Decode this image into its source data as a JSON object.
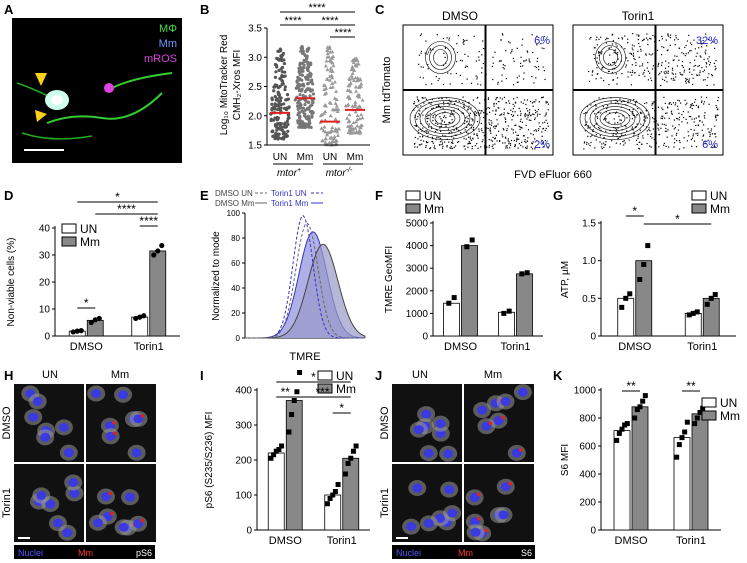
{
  "panels": {
    "A": {
      "letter": "A",
      "labels": {
        "mphi": "MΦ",
        "mm": "Mm",
        "mros": "mROS"
      },
      "colors": {
        "mphi": "#44dd44",
        "mm": "#6699ff",
        "mros": "#dd44dd"
      }
    },
    "B": {
      "letter": "B",
      "ylabel_line1": "Log₁₀ MitoTracker Red",
      "ylabel_line2": "CMH₂-Xros MFI",
      "yticks": [
        "1.5",
        "2.0",
        "2.5",
        "3.0",
        "3.5"
      ],
      "xticks": [
        "UN",
        "Mm",
        "UN",
        "Mm"
      ],
      "group1": "mtor",
      "group1_sup": "+",
      "group2": "mtor",
      "group2_sup": "-/-",
      "stars": [
        "****",
        "****",
        "****",
        "****"
      ]
    },
    "C": {
      "letter": "C",
      "title_left": "DMSO",
      "title_right": "Torin1",
      "ylabel": "Mm tdTomato",
      "xlabel": "FVD eFluor 660",
      "quad_left": [
        "6%",
        "2%"
      ],
      "quad_right": [
        "32%",
        "6%"
      ]
    },
    "D": {
      "letter": "D",
      "ylabel": "Non-viable cells (%)",
      "yticks": [
        "0",
        "10",
        "20",
        "30",
        "40"
      ],
      "xticks": [
        "DMSO",
        "Torin1"
      ],
      "legend": [
        "UN",
        "Mm"
      ],
      "stars": [
        "*",
        "****",
        "****",
        "*"
      ]
    },
    "E": {
      "letter": "E",
      "ylabel": "Normalized to mode",
      "xlabel": "TMRE",
      "yticks": [
        "0",
        "20",
        "40",
        "60",
        "80",
        "100"
      ],
      "legend": [
        "DMSO UN",
        "Torin1 UN",
        "DMSO Mm",
        "Torin1 Mm"
      ]
    },
    "F": {
      "letter": "F",
      "ylabel": "TMRE GeoMFI",
      "yticks": [
        "0",
        "1000",
        "2000",
        "3000",
        "4000",
        "5000"
      ],
      "xticks": [
        "DMSO",
        "Torin1"
      ],
      "legend": [
        "UN",
        "Mm"
      ]
    },
    "G": {
      "letter": "G",
      "ylabel": "ATP, µM",
      "yticks": [
        "0",
        "0.5",
        "1.0",
        "1.5"
      ],
      "xticks": [
        "DMSO",
        "Torin1"
      ],
      "legend": [
        "UN",
        "Mm"
      ],
      "stars": [
        "*",
        "*"
      ]
    },
    "H": {
      "letter": "H",
      "cols": [
        "UN",
        "Mm"
      ],
      "rows": [
        "DMSO",
        "Torin1"
      ],
      "legend": [
        "Nuclei",
        "Mm",
        "pS6"
      ]
    },
    "I": {
      "letter": "I",
      "ylabel": "pS6 (S235/S236) MFI",
      "yticks": [
        "0",
        "100",
        "200",
        "300",
        "400"
      ],
      "xticks": [
        "DMSO",
        "Torin1"
      ],
      "legend": [
        "UN",
        "Mm"
      ],
      "stars": [
        "*",
        "**",
        "***",
        "*"
      ]
    },
    "J": {
      "letter": "J",
      "cols": [
        "UN",
        "Mm"
      ],
      "rows": [
        "DMSO",
        "Torin1"
      ],
      "legend": [
        "Nuclei",
        "Mm",
        "S6"
      ]
    },
    "K": {
      "letter": "K",
      "ylabel": "S6 MFI",
      "yticks": [
        "0",
        "200",
        "400",
        "600",
        "800",
        "1000"
      ],
      "xticks": [
        "DMSO",
        "Torin1"
      ],
      "legend": [
        "UN",
        "Mm"
      ],
      "stars": [
        "**",
        "**"
      ]
    }
  },
  "chart_data": [
    {
      "panel": "D",
      "type": "bar",
      "categories": [
        "DMSO",
        "Torin1"
      ],
      "ylim": [
        0,
        40
      ],
      "series": [
        {
          "name": "UN",
          "values": [
            1.8,
            7.0
          ],
          "points": [
            [
              1.5,
              1.8,
              2.0
            ],
            [
              6.5,
              7.0,
              7.5
            ]
          ]
        },
        {
          "name": "Mm",
          "values": [
            5.8,
            31.5
          ],
          "points": [
            [
              5.0,
              6.0,
              6.5
            ],
            [
              30,
              31.5,
              33.5
            ]
          ]
        }
      ]
    },
    {
      "panel": "F",
      "type": "bar",
      "categories": [
        "DMSO",
        "Torin1"
      ],
      "ylim": [
        0,
        5000
      ],
      "series": [
        {
          "name": "UN",
          "values": [
            1450,
            1050
          ],
          "points": [
            [
              1450,
              1700
            ],
            [
              1000,
              1100
            ]
          ]
        },
        {
          "name": "Mm",
          "values": [
            4000,
            2750
          ],
          "points": [
            [
              3950,
              4250
            ],
            [
              2750,
              2800
            ]
          ]
        }
      ]
    },
    {
      "panel": "G",
      "type": "bar",
      "categories": [
        "DMSO",
        "Torin1"
      ],
      "ylim": [
        0,
        1.5
      ],
      "series": [
        {
          "name": "UN",
          "values": [
            0.5,
            0.3
          ],
          "points": [
            [
              0.38,
              0.5,
              0.56
            ],
            [
              0.28,
              0.3,
              0.32
            ]
          ]
        },
        {
          "name": "Mm",
          "values": [
            1.0,
            0.5
          ],
          "points": [
            [
              0.75,
              0.95,
              1.2
            ],
            [
              0.42,
              0.5,
              0.55
            ]
          ]
        }
      ]
    },
    {
      "panel": "I",
      "type": "bar",
      "categories": [
        "DMSO",
        "Torin1"
      ],
      "ylim": [
        0,
        400
      ],
      "series": [
        {
          "name": "UN",
          "values": [
            220,
            100
          ],
          "points": [
            [
              205,
              215,
              225,
              230,
              240
            ],
            [
              75,
              90,
              100,
              110,
              130
            ]
          ]
        },
        {
          "name": "Mm",
          "values": [
            370,
            205
          ],
          "points": [
            [
              280,
              330,
              370,
              395,
              450
            ],
            [
              160,
              190,
              205,
              225,
              240
            ]
          ]
        }
      ]
    },
    {
      "panel": "K",
      "type": "bar",
      "categories": [
        "DMSO",
        "Torin1"
      ],
      "ylim": [
        0,
        1000
      ],
      "series": [
        {
          "name": "UN",
          "values": [
            710,
            660
          ],
          "points": [
            [
              640,
              690,
              720,
              750,
              760
            ],
            [
              520,
              610,
              660,
              700,
              770
            ]
          ]
        },
        {
          "name": "Mm",
          "values": [
            880,
            830
          ],
          "points": [
            [
              800,
              860,
              880,
              920,
              960
            ],
            [
              760,
              800,
              840,
              870,
              900
            ]
          ]
        }
      ]
    }
  ]
}
